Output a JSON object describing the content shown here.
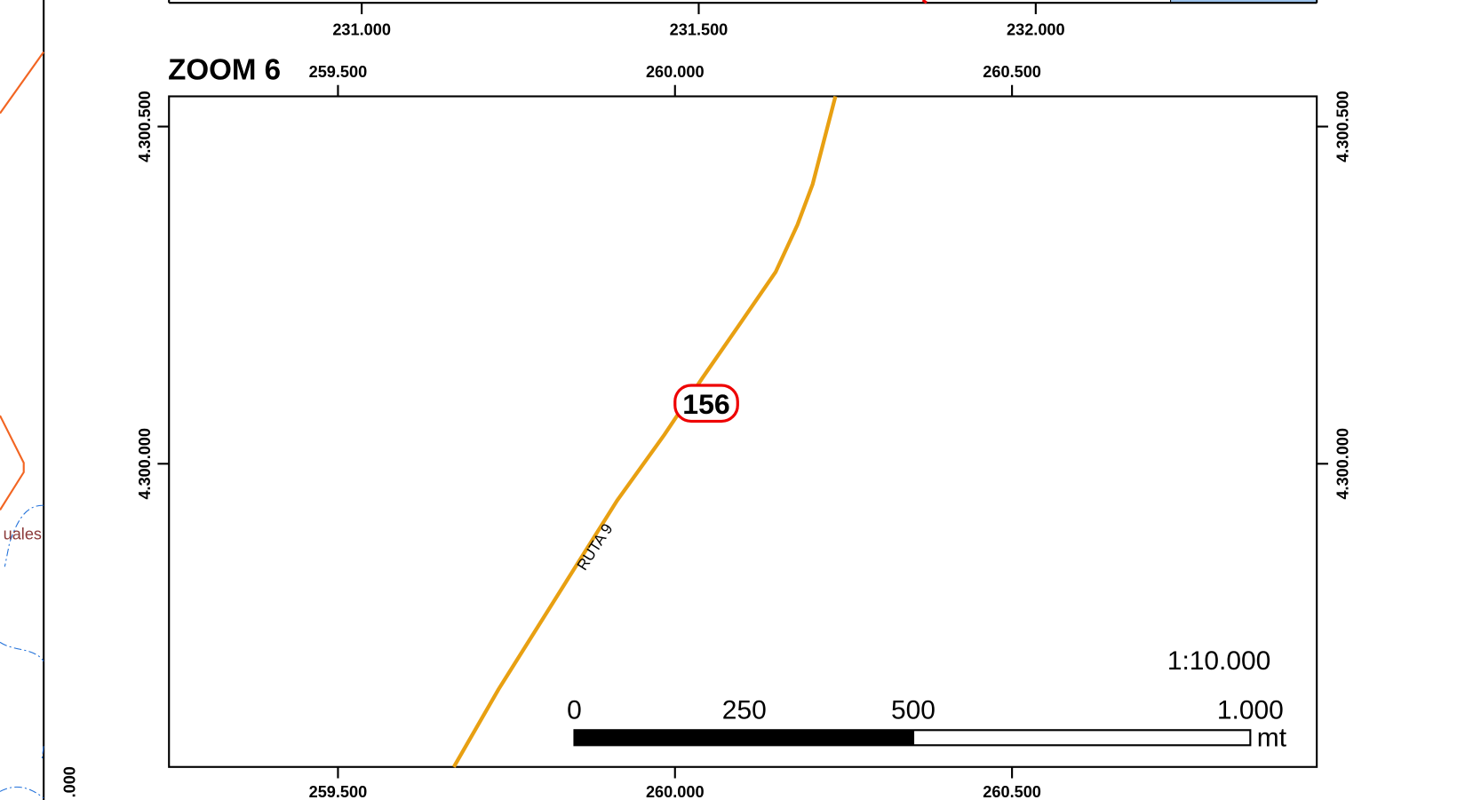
{
  "upper_map": {
    "x_labels": [
      "231.000",
      "231.500",
      "232.000"
    ]
  },
  "zoom": {
    "title": "ZOOM 6",
    "top_labels": [
      "259.500",
      "260.000",
      "260.500"
    ],
    "bottom_labels": [
      "259.500",
      "260.000",
      "260.500"
    ],
    "left_labels": [
      "4.300.500",
      "4.300.000"
    ],
    "right_labels": [
      "4.300.500",
      "4.300.000"
    ],
    "road_shield": "156",
    "road_name": "RUTA 9",
    "scale_text": "1:10.000",
    "scale_bar": {
      "labels": [
        "0",
        "250",
        "500",
        "1.000"
      ],
      "unit": "mt"
    }
  },
  "left_map": {
    "place_label": "uales",
    "axis_label": ".000"
  }
}
